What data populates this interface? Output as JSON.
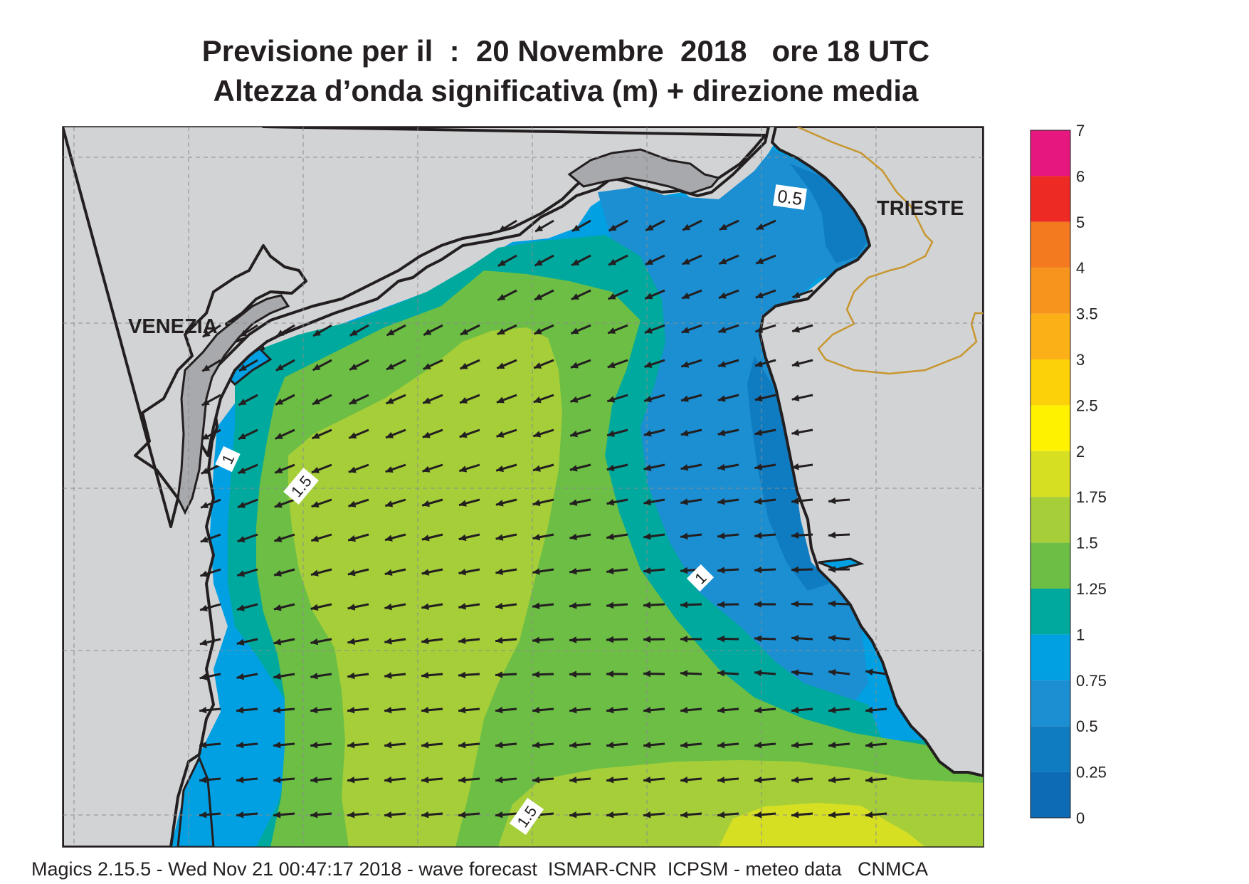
{
  "header": {
    "title_line1": "Previsione per il  :  20 Novembre  2018   ore 18 UTC",
    "title_line2": "Altezza d’onda significativa (m) + direzione media"
  },
  "map": {
    "cities": [
      "VENEZIA",
      "TRIESTE"
    ],
    "contour_labels": [
      "0.5",
      "1",
      "1.5",
      "1",
      "1.5"
    ],
    "land_color": "#d1d3d4",
    "coastline_color": "#231f20",
    "border_color": "#c8962e",
    "arrow_color": "#231f20",
    "arrow_direction": "toward-west-southwest"
  },
  "legend": {
    "ticks": [
      "7",
      "6",
      "5",
      "4",
      "3.5",
      "3",
      "2.5",
      "2",
      "1.75",
      "1.5",
      "1.25",
      "1",
      "0.75",
      "0.5",
      "0.25",
      "0"
    ],
    "colors": [
      "#e6177f",
      "#ee2a24",
      "#f47a20",
      "#f7941d",
      "#fbb017",
      "#fdd10a",
      "#fff200",
      "#d7df23",
      "#a6ce39",
      "#6dbe45",
      "#00a99d",
      "#00a0e3",
      "#1b8fd2",
      "#0f7cc2",
      "#0d6bb5"
    ]
  },
  "footer": {
    "text": "Magics 2.15.5 - Wed Nov 21 00:47:17 2018 - wave forecast  ISMAR-CNR  ICPSM - meteo data   CNMCA"
  }
}
